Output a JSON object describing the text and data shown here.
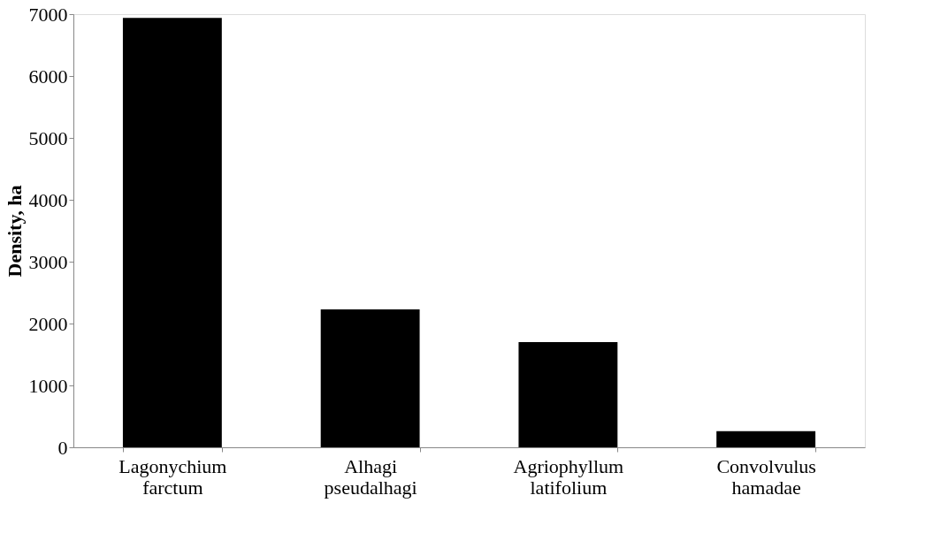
{
  "chart_data": {
    "type": "bar",
    "ylabel": "Density, ha",
    "categories": [
      "Lagonychium farctum",
      "Alhagi pseudalhagi",
      "Agriophyllum latifolium",
      "Convolvulus hamadae"
    ],
    "values": [
      6940,
      2230,
      1700,
      260
    ],
    "color": "#000000",
    "ylim": [
      0,
      7000
    ],
    "yticks": [
      0,
      1000,
      2000,
      3000,
      4000,
      5000,
      6000,
      7000
    ],
    "grid": false
  }
}
